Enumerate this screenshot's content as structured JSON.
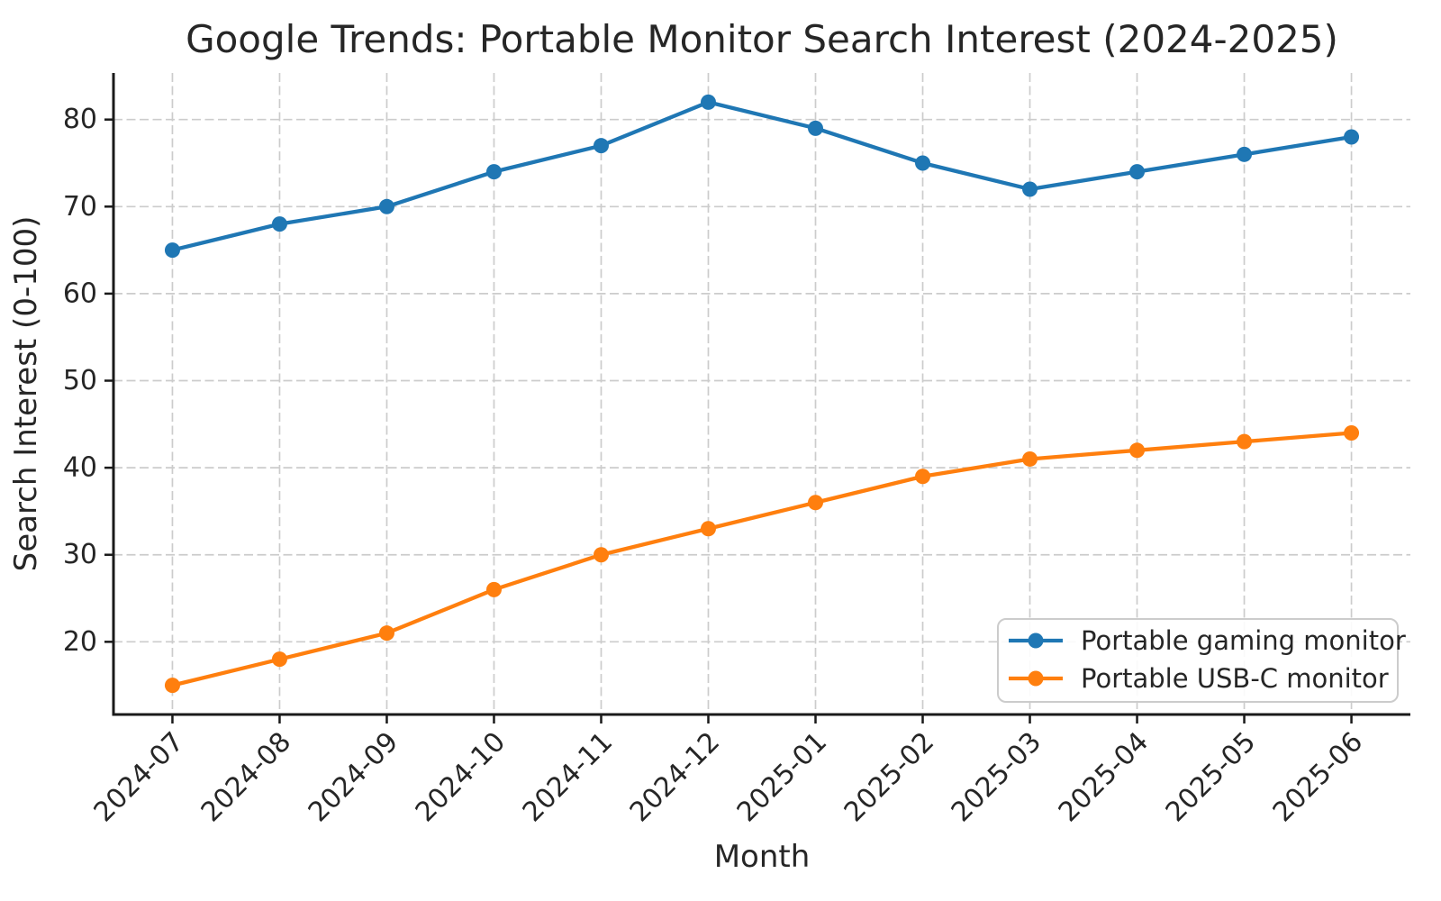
{
  "chart_data": {
    "type": "line",
    "title": "Google Trends: Portable Monitor Search Interest (2024-2025)",
    "xlabel": "Month",
    "ylabel": "Search Interest (0-100)",
    "categories": [
      "2024-07",
      "2024-08",
      "2024-09",
      "2024-10",
      "2024-11",
      "2024-12",
      "2025-01",
      "2025-02",
      "2025-03",
      "2025-04",
      "2025-05",
      "2025-06"
    ],
    "series": [
      {
        "name": "Portable gaming monitor",
        "color": "#1f77b4",
        "values": [
          65,
          68,
          70,
          74,
          77,
          82,
          79,
          75,
          72,
          74,
          76,
          78
        ]
      },
      {
        "name": "Portable USB-C monitor",
        "color": "#ff7f0e",
        "values": [
          15,
          18,
          21,
          26,
          30,
          33,
          36,
          39,
          41,
          42,
          43,
          44
        ]
      }
    ],
    "yticks": [
      20,
      30,
      40,
      50,
      60,
      70,
      80
    ],
    "ylim": [
      11.65,
      85.35
    ],
    "x_margin": 0.55,
    "grid": true,
    "grid_style": "dashed",
    "legend_position": "lower right",
    "x_tick_rotation": 45
  },
  "style": {
    "accent_blue": "#1f77b4",
    "accent_orange": "#ff7f0e",
    "grid_color": "#cccccc",
    "text_color": "#262626",
    "spine_color": "#1a1a1a",
    "legend_border": "#cccccc",
    "background": "#ffffff"
  }
}
